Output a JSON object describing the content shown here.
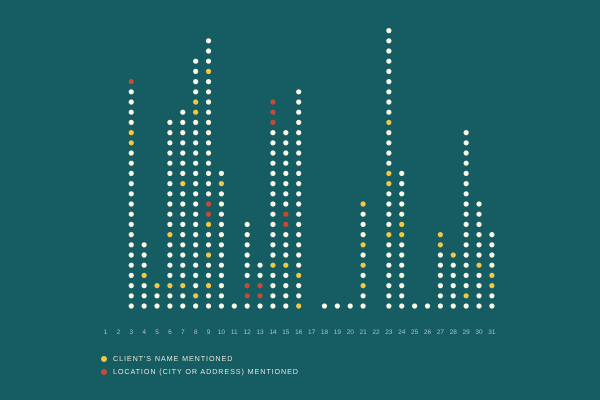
{
  "colors": {
    "background": "#165c63",
    "plain": "#fbf7e6",
    "name": "#f3c842",
    "location": "#c94a32",
    "tick": "#a9c6c4"
  },
  "legend": {
    "name_label": "CLIENT'S NAME MENTIONED",
    "location_label": "LOCATION (CITY OR ADDRESS) MENTIONED"
  },
  "chart_data": {
    "type": "dot-stack",
    "title": "",
    "xlabel": "",
    "ylabel": "",
    "categories": [
      "1",
      "2",
      "3",
      "4",
      "5",
      "6",
      "7",
      "8",
      "9",
      "10",
      "11",
      "12",
      "13",
      "14",
      "15",
      "16",
      "17",
      "18",
      "19",
      "20",
      "21",
      "22",
      "23",
      "24",
      "25",
      "26",
      "27",
      "28",
      "29",
      "30",
      "31"
    ],
    "series": [
      {
        "key": "name",
        "name": "CLIENT'S NAME MENTIONED"
      },
      {
        "key": "location",
        "name": "LOCATION (CITY OR ADDRESS) MENTIONED"
      }
    ],
    "columns": [
      {
        "day": "1",
        "dots": 0,
        "name": [],
        "location": []
      },
      {
        "day": "2",
        "dots": 0,
        "name": [],
        "location": []
      },
      {
        "day": "3",
        "dots": 23,
        "name": [
          17,
          18
        ],
        "location": [
          23
        ]
      },
      {
        "day": "4",
        "dots": 7,
        "name": [
          4
        ],
        "location": []
      },
      {
        "day": "5",
        "dots": 3,
        "name": [
          3
        ],
        "location": []
      },
      {
        "day": "6",
        "dots": 19,
        "name": [
          3,
          8
        ],
        "location": []
      },
      {
        "day": "7",
        "dots": 20,
        "name": [
          3,
          13
        ],
        "location": []
      },
      {
        "day": "8",
        "dots": 25,
        "name": [
          2,
          20,
          21
        ],
        "location": []
      },
      {
        "day": "9",
        "dots": 27,
        "name": [
          3,
          6,
          9,
          24
        ],
        "location": [
          10,
          11
        ]
      },
      {
        "day": "10",
        "dots": 14,
        "name": [
          13
        ],
        "location": []
      },
      {
        "day": "11",
        "dots": 1,
        "name": [],
        "location": []
      },
      {
        "day": "12",
        "dots": 9,
        "name": [],
        "location": [
          2,
          3
        ]
      },
      {
        "day": "13",
        "dots": 5,
        "name": [],
        "location": [
          2,
          3
        ]
      },
      {
        "day": "14",
        "dots": 21,
        "name": [
          5
        ],
        "location": [
          19,
          20,
          21
        ]
      },
      {
        "day": "15",
        "dots": 18,
        "name": [
          5
        ],
        "location": [
          9,
          10
        ]
      },
      {
        "day": "16",
        "dots": 22,
        "name": [
          1,
          4
        ],
        "location": []
      },
      {
        "day": "17",
        "dots": 0,
        "name": [],
        "location": []
      },
      {
        "day": "18",
        "dots": 1,
        "name": [],
        "location": []
      },
      {
        "day": "19",
        "dots": 1,
        "name": [],
        "location": []
      },
      {
        "day": "20",
        "dots": 1,
        "name": [],
        "location": []
      },
      {
        "day": "21",
        "dots": 11,
        "name": [
          3,
          5,
          7,
          11
        ],
        "location": []
      },
      {
        "day": "22",
        "dots": 0,
        "name": [],
        "location": []
      },
      {
        "day": "23",
        "dots": 28,
        "name": [
          8,
          13,
          14,
          19
        ],
        "location": []
      },
      {
        "day": "24",
        "dots": 14,
        "name": [
          8,
          9
        ],
        "location": []
      },
      {
        "day": "25",
        "dots": 1,
        "name": [],
        "location": []
      },
      {
        "day": "26",
        "dots": 1,
        "name": [],
        "location": []
      },
      {
        "day": "27",
        "dots": 8,
        "name": [
          7,
          8
        ],
        "location": []
      },
      {
        "day": "28",
        "dots": 6,
        "name": [
          6
        ],
        "location": []
      },
      {
        "day": "29",
        "dots": 18,
        "name": [
          2
        ],
        "location": []
      },
      {
        "day": "30",
        "dots": 11,
        "name": [
          5
        ],
        "location": []
      },
      {
        "day": "31",
        "dots": 8,
        "name": [
          3,
          4
        ],
        "location": []
      }
    ]
  }
}
